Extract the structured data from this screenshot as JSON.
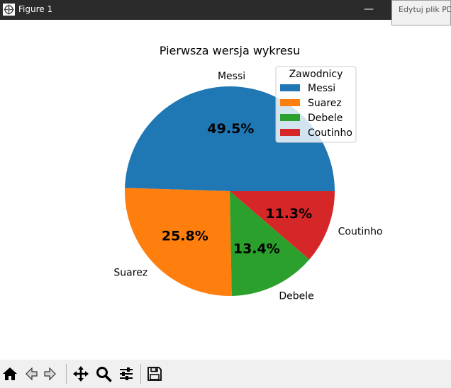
{
  "window": {
    "title": "Figure 1",
    "tooltip": "Edytuj plik PDF",
    "minimize_glyph": "—",
    "close_glyph": "✕"
  },
  "chart_data": {
    "type": "pie",
    "title": "Pierwsza wersja wykresu",
    "slices": [
      {
        "label": "Messi",
        "pct_label": "49.5%",
        "value": 49.5,
        "color": "#1f77b4"
      },
      {
        "label": "Suarez",
        "pct_label": "25.8%",
        "value": 25.8,
        "color": "#ff7f0e"
      },
      {
        "label": "Debele",
        "pct_label": "13.4%",
        "value": 13.4,
        "color": "#2ca02c"
      },
      {
        "label": "Coutinho",
        "pct_label": "11.3%",
        "value": 11.3,
        "color": "#d62728"
      }
    ],
    "start_angle_deg": 0,
    "direction": "counterclockwise",
    "legend": {
      "title": "Zawodnicy",
      "position": "upper-right",
      "entries": [
        "Messi",
        "Suarez",
        "Debele",
        "Coutinho"
      ]
    }
  },
  "toolbar": {
    "buttons": [
      {
        "name": "home-button",
        "icon": "home-icon"
      },
      {
        "name": "back-button",
        "icon": "arrow-left-icon"
      },
      {
        "name": "forward-button",
        "icon": "arrow-right-icon"
      },
      {
        "name": "pan-button",
        "icon": "move-icon"
      },
      {
        "name": "zoom-button",
        "icon": "magnifier-icon"
      },
      {
        "name": "configure-subplots-button",
        "icon": "sliders-icon"
      },
      {
        "name": "save-button",
        "icon": "floppy-disk-icon"
      }
    ]
  }
}
